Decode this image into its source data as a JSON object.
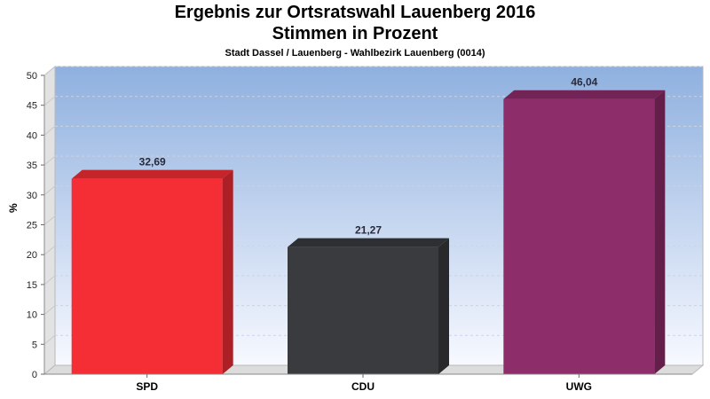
{
  "chart_data": {
    "type": "bar",
    "title": "Ergebnis zur Ortsratswahl Lauenberg 2016",
    "title_line2": "Stimmen in Prozent",
    "subtitle": "Stadt Dassel / Lauenberg - Wahlbezirk Lauenberg (0014)",
    "ylabel": "%",
    "xlabel": "",
    "categories": [
      "SPD",
      "CDU",
      "UWG"
    ],
    "values": [
      32.69,
      21.27,
      46.04
    ],
    "value_labels": [
      "32,69",
      "21,27",
      "46,04"
    ],
    "colors": [
      "#f52d35",
      "#3a3b3e",
      "#8d2d6a"
    ],
    "ylim": [
      0,
      50
    ],
    "yticks": [
      0,
      5,
      10,
      15,
      20,
      25,
      30,
      35,
      40,
      45,
      50
    ],
    "grid": true,
    "legend": "none",
    "style": "3d"
  }
}
